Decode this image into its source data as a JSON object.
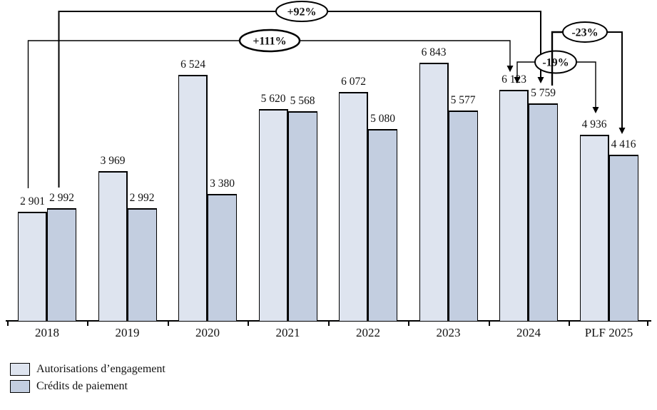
{
  "chart_data": {
    "type": "bar",
    "title": "",
    "categories": [
      "2018",
      "2019",
      "2020",
      "2021",
      "2022",
      "2023",
      "2024",
      "PLF 2025"
    ],
    "series": [
      {
        "name": "Autorisations d’engagement",
        "color": "#dee4ef",
        "values": [
          2901,
          3969,
          6524,
          5620,
          6072,
          6843,
          6123,
          4936
        ],
        "value_labels": [
          "2 901",
          "3 969",
          "6 524",
          "5 620",
          "6 072",
          "6 843",
          "6 123",
          "4 936"
        ]
      },
      {
        "name": "Crédits de paiement",
        "color": "#c3cee0",
        "values": [
          2992,
          2992,
          3380,
          5568,
          5080,
          5577,
          5759,
          4416
        ],
        "value_labels": [
          "2 992",
          "2 992",
          "3 380",
          "5 568",
          "5 080",
          "5 577",
          "5 759",
          "4 416"
        ]
      }
    ],
    "annotations": [
      {
        "label": "+92%",
        "from": {
          "category": "2018",
          "series": "Crédits de paiement"
        },
        "to": {
          "category": "2024",
          "series": "Crédits de paiement"
        }
      },
      {
        "label": "+111%",
        "from": {
          "category": "2018",
          "series": "Autorisations d’engagement"
        },
        "to": {
          "category": "2024",
          "series": "Autorisations d’engagement"
        }
      },
      {
        "label": "-19%",
        "from": {
          "category": "2024",
          "series": "Autorisations d’engagement"
        },
        "to": {
          "category": "PLF 2025",
          "series": "Autorisations d’engagement"
        }
      },
      {
        "label": "-23%",
        "from": {
          "category": "2024",
          "series": "Crédits de paiement"
        },
        "to": {
          "category": "PLF 2025",
          "series": "Crédits de paiement"
        }
      }
    ],
    "xlabel": "",
    "ylabel": "",
    "ylim": [
      0,
      8500
    ],
    "grid": false,
    "y_axis_shown": false,
    "legend_position": "bottom-left",
    "line_color": "#000000",
    "text_color": "#111111"
  }
}
